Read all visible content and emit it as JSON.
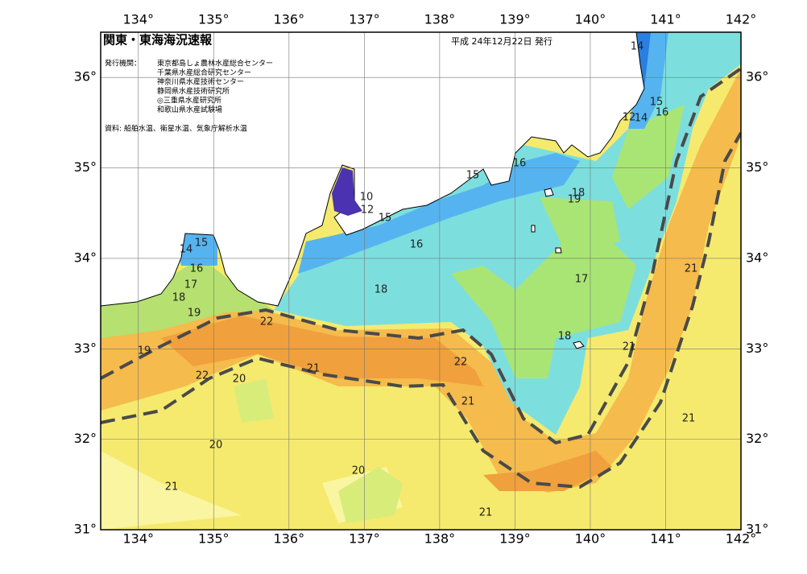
{
  "header": {
    "title": "関東・東海海況速報",
    "date": "平成 24年12月22日 発行",
    "issuers_label": "発行機関：",
    "issuers": [
      "東京都島しょ農林水産総合センター",
      "千葉県水産総合研究センター",
      "神奈川県水産技術センター",
      "静岡県水産技術研究所",
      "◎三重県水産研究所",
      "和歌山県水産試験場"
    ],
    "source": "資料: 船舶水温、衛星水温、気象庁解析水温"
  },
  "map": {
    "xlim": [
      133.5,
      142
    ],
    "ylim": [
      31,
      36.5
    ],
    "xticks": [
      {
        "value": 134,
        "label": "134°"
      },
      {
        "value": 135,
        "label": "135°"
      },
      {
        "value": 136,
        "label": "136°"
      },
      {
        "value": 137,
        "label": "137°"
      },
      {
        "value": 138,
        "label": "138°"
      },
      {
        "value": 139,
        "label": "139°"
      },
      {
        "value": 140,
        "label": "140°"
      },
      {
        "value": 141,
        "label": "141°"
      },
      {
        "value": 142,
        "label": "142°"
      }
    ],
    "yticks": [
      {
        "value": 31,
        "label": "31°"
      },
      {
        "value": 32,
        "label": "32°"
      },
      {
        "value": 33,
        "label": "33°"
      },
      {
        "value": 34,
        "label": "34°"
      },
      {
        "value": 35,
        "label": "35°"
      },
      {
        "value": 36,
        "label": "36°"
      }
    ],
    "contour_labels": [
      14,
      15,
      16,
      12,
      14,
      16,
      15,
      18,
      19,
      10,
      12,
      15,
      15,
      14,
      16,
      17,
      18,
      19,
      16,
      18,
      17,
      18,
      21,
      21,
      22,
      19,
      22,
      21,
      22,
      20,
      21,
      21,
      20,
      20,
      21,
      21
    ]
  }
}
